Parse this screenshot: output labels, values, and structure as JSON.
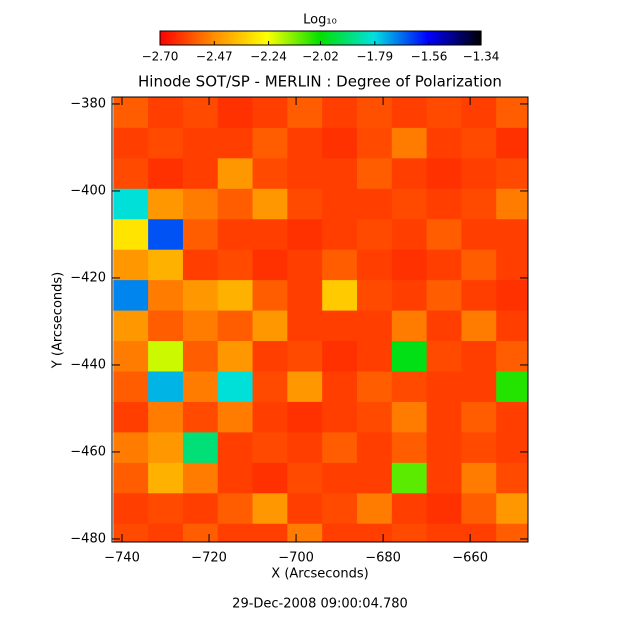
{
  "chart_data": {
    "type": "heatmap",
    "title": "Hinode SOT/SP - MERLIN : Degree of Polarization",
    "xlabel": "X (Arcseconds)",
    "ylabel": "Y (Arcseconds)",
    "footer": "29-Dec-2008 09:00:04.780",
    "colorbar_label": "Log₁₀",
    "colormap": [
      "#ff0000",
      "#ff8c00",
      "#ffff00",
      "#00e000",
      "#00e0e0",
      "#0000ff",
      "#000000"
    ],
    "zlim": [
      -2.7,
      -1.34
    ],
    "zticks": [
      {
        "value": -2.7,
        "label": "−2.70"
      },
      {
        "value": -2.47,
        "label": "−2.47"
      },
      {
        "value": -2.24,
        "label": "−2.24"
      },
      {
        "value": -2.02,
        "label": "−2.02"
      },
      {
        "value": -1.79,
        "label": "−1.79"
      },
      {
        "value": -1.56,
        "label": "−1.56"
      },
      {
        "value": -1.34,
        "label": "−1.34"
      }
    ],
    "xlim": [
      -742.3,
      -646.7
    ],
    "ylim": [
      -480.7,
      -378.4
    ],
    "xticks": [
      {
        "value": -740,
        "label": "−740"
      },
      {
        "value": -720,
        "label": "−720"
      },
      {
        "value": -700,
        "label": "−700"
      },
      {
        "value": -680,
        "label": "−680"
      },
      {
        "value": -660,
        "label": "−660"
      }
    ],
    "yticks": [
      {
        "value": -380,
        "label": "−380"
      },
      {
        "value": -400,
        "label": "−400"
      },
      {
        "value": -420,
        "label": "−420"
      },
      {
        "value": -440,
        "label": "−440"
      },
      {
        "value": -460,
        "label": "−460"
      },
      {
        "value": -480,
        "label": "−480"
      }
    ],
    "x": [
      -738,
      -730,
      -722,
      -714,
      -706,
      -698,
      -690,
      -682,
      -674,
      -666,
      -658,
      -650
    ],
    "y": [
      -382,
      -389,
      -396,
      -403,
      -410,
      -417,
      -424,
      -431,
      -438,
      -445,
      -452,
      -459,
      -466,
      -473,
      -480
    ],
    "z": [
      [
        -2.55,
        -2.6,
        -2.58,
        -2.62,
        -2.6,
        -2.55,
        -2.6,
        -2.57,
        -2.6,
        -2.58,
        -2.6,
        -2.55
      ],
      [
        -2.6,
        -2.58,
        -2.6,
        -2.6,
        -2.55,
        -2.6,
        -2.62,
        -2.58,
        -2.5,
        -2.6,
        -2.58,
        -2.62
      ],
      [
        -2.58,
        -2.62,
        -2.6,
        -2.45,
        -2.58,
        -2.6,
        -2.6,
        -2.55,
        -2.6,
        -2.62,
        -2.6,
        -2.58
      ],
      [
        -1.8,
        -2.45,
        -2.5,
        -2.55,
        -2.45,
        -2.58,
        -2.6,
        -2.6,
        -2.58,
        -2.6,
        -2.58,
        -2.5
      ],
      [
        -2.3,
        -1.65,
        -2.55,
        -2.6,
        -2.6,
        -2.62,
        -2.6,
        -2.58,
        -2.6,
        -2.55,
        -2.6,
        -2.6
      ],
      [
        -2.45,
        -2.4,
        -2.6,
        -2.58,
        -2.62,
        -2.6,
        -2.55,
        -2.6,
        -2.62,
        -2.6,
        -2.55,
        -2.6
      ],
      [
        -1.7,
        -2.5,
        -2.45,
        -2.4,
        -2.55,
        -2.6,
        -2.35,
        -2.58,
        -2.6,
        -2.55,
        -2.6,
        -2.62
      ],
      [
        -2.45,
        -2.55,
        -2.5,
        -2.55,
        -2.45,
        -2.6,
        -2.6,
        -2.6,
        -2.5,
        -2.6,
        -2.5,
        -2.6
      ],
      [
        -2.5,
        -2.2,
        -2.55,
        -2.45,
        -2.6,
        -2.58,
        -2.62,
        -2.6,
        -2.0,
        -2.58,
        -2.6,
        -2.55
      ],
      [
        -2.55,
        -1.75,
        -2.5,
        -1.8,
        -2.58,
        -2.45,
        -2.6,
        -2.55,
        -2.58,
        -2.6,
        -2.6,
        -2.05
      ],
      [
        -2.6,
        -2.5,
        -2.58,
        -2.5,
        -2.6,
        -2.62,
        -2.6,
        -2.58,
        -2.5,
        -2.6,
        -2.55,
        -2.6
      ],
      [
        -2.5,
        -2.45,
        -1.9,
        -2.6,
        -2.58,
        -2.6,
        -2.55,
        -2.6,
        -2.55,
        -2.6,
        -2.58,
        -2.6
      ],
      [
        -2.55,
        -2.4,
        -2.5,
        -2.6,
        -2.62,
        -2.58,
        -2.6,
        -2.6,
        -2.1,
        -2.6,
        -2.5,
        -2.58
      ],
      [
        -2.6,
        -2.58,
        -2.6,
        -2.55,
        -2.45,
        -2.6,
        -2.58,
        -2.5,
        -2.6,
        -2.62,
        -2.55,
        -2.45
      ],
      [
        -2.58,
        -2.6,
        -2.55,
        -2.6,
        -2.6,
        -2.5,
        -2.6,
        -2.6,
        -2.58,
        -2.6,
        -2.6,
        -2.55
      ]
    ]
  }
}
